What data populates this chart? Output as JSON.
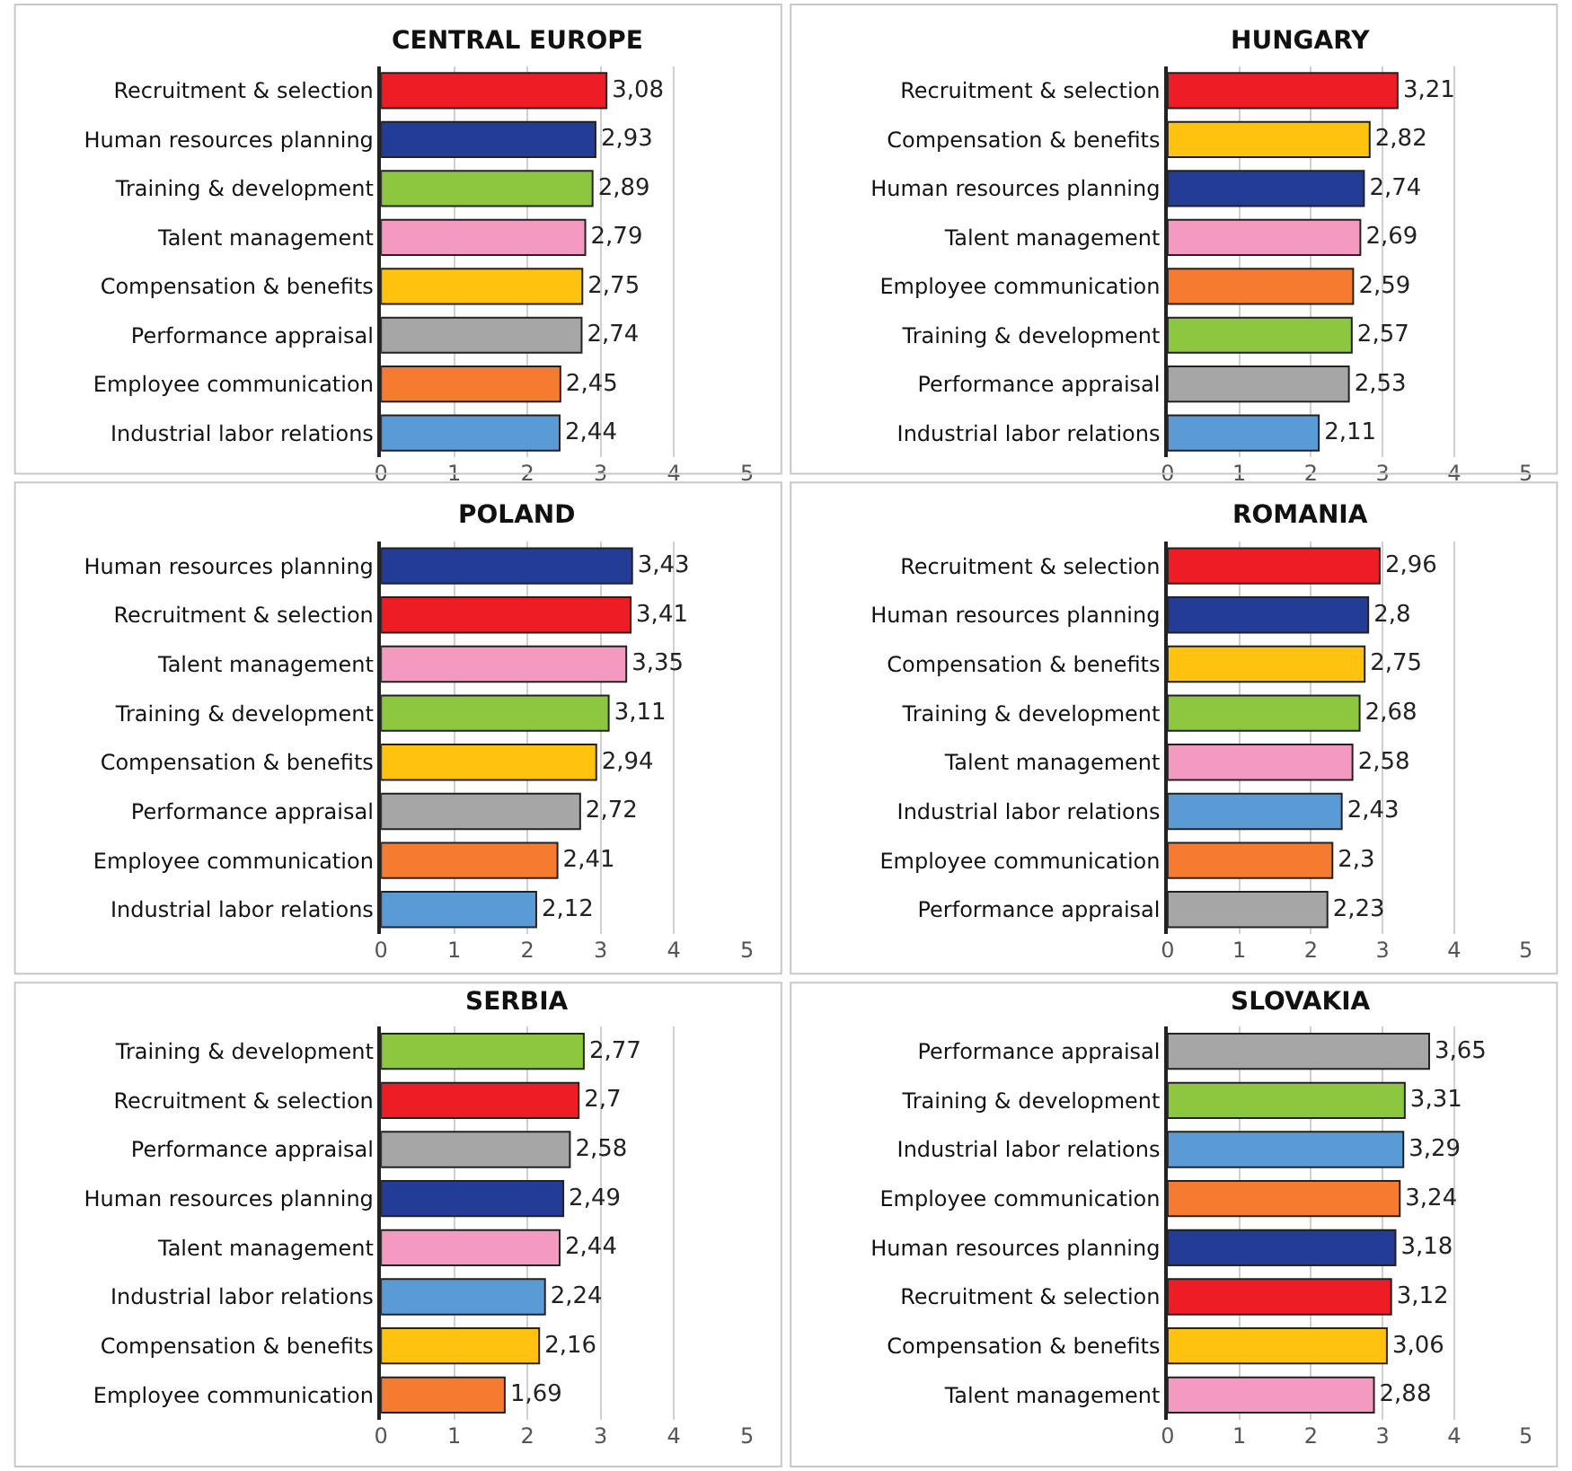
{
  "chart_data": [
    {
      "type": "bar",
      "orientation": "horizontal",
      "title": "CENTRAL EUROPE",
      "categories": [
        "Recruitment & selection",
        "Human resources planning",
        "Training & development",
        "Talent management",
        "Compensation & benefits",
        "Performance appraisal",
        "Employee communication",
        "Industrial labor relations"
      ],
      "values": [
        3.08,
        2.93,
        2.89,
        2.79,
        2.75,
        2.74,
        2.45,
        2.44
      ],
      "value_labels": [
        "3,08",
        "2,93",
        "2,89",
        "2,79",
        "2,75",
        "2,74",
        "2,45",
        "2,44"
      ],
      "colors": [
        "#ee1c25",
        "#233d96",
        "#8dc63f",
        "#f49ac1",
        "#ffc20e",
        "#a6a6a6",
        "#f47b30",
        "#5b9bd5"
      ],
      "xlim": [
        0,
        5
      ],
      "xticks": [
        0,
        1,
        2,
        3,
        4,
        5
      ],
      "grid": "x"
    },
    {
      "type": "bar",
      "orientation": "horizontal",
      "title": "HUNGARY",
      "categories": [
        "Recruitment & selection",
        "Compensation & benefits",
        "Human resources planning",
        "Talent management",
        "Employee communication",
        "Training & development",
        "Performance appraisal",
        "Industrial labor relations"
      ],
      "values": [
        3.21,
        2.82,
        2.74,
        2.69,
        2.59,
        2.57,
        2.53,
        2.11
      ],
      "value_labels": [
        "3,21",
        "2,82",
        "2,74",
        "2,69",
        "2,59",
        "2,57",
        "2,53",
        "2,11"
      ],
      "colors": [
        "#ee1c25",
        "#ffc20e",
        "#233d96",
        "#f49ac1",
        "#f47b30",
        "#8dc63f",
        "#a6a6a6",
        "#5b9bd5"
      ],
      "xlim": [
        0,
        5
      ],
      "xticks": [
        0,
        1,
        2,
        3,
        4,
        5
      ],
      "grid": "x"
    },
    {
      "type": "bar",
      "orientation": "horizontal",
      "title": "POLAND",
      "categories": [
        "Human resources planning",
        "Recruitment & selection",
        "Talent management",
        "Training & development",
        "Compensation & benefits",
        "Performance appraisal",
        "Employee communication",
        "Industrial labor relations"
      ],
      "values": [
        3.43,
        3.41,
        3.35,
        3.11,
        2.94,
        2.72,
        2.41,
        2.12
      ],
      "value_labels": [
        "3,43",
        "3,41",
        "3,35",
        "3,11",
        "2,94",
        "2,72",
        "2,41",
        "2,12"
      ],
      "colors": [
        "#233d96",
        "#ee1c25",
        "#f49ac1",
        "#8dc63f",
        "#ffc20e",
        "#a6a6a6",
        "#f47b30",
        "#5b9bd5"
      ],
      "xlim": [
        0,
        5
      ],
      "xticks": [
        0,
        1,
        2,
        3,
        4,
        5
      ],
      "grid": "x"
    },
    {
      "type": "bar",
      "orientation": "horizontal",
      "title": "ROMANIA",
      "categories": [
        "Recruitment & selection",
        "Human resources planning",
        "Compensation & benefits",
        "Training & development",
        "Talent management",
        "Industrial labor relations",
        "Employee communication",
        "Performance appraisal"
      ],
      "values": [
        2.96,
        2.8,
        2.75,
        2.68,
        2.58,
        2.43,
        2.3,
        2.23
      ],
      "value_labels": [
        "2,96",
        "2,8",
        "2,75",
        "2,68",
        "2,58",
        "2,43",
        "2,3",
        "2,23"
      ],
      "colors": [
        "#ee1c25",
        "#233d96",
        "#ffc20e",
        "#8dc63f",
        "#f49ac1",
        "#5b9bd5",
        "#f47b30",
        "#a6a6a6"
      ],
      "xlim": [
        0,
        5
      ],
      "xticks": [
        0,
        1,
        2,
        3,
        4,
        5
      ],
      "grid": "x"
    },
    {
      "type": "bar",
      "orientation": "horizontal",
      "title": "SERBIA",
      "categories": [
        "Training & development",
        "Recruitment & selection",
        "Performance appraisal",
        "Human resources planning",
        "Talent management",
        "Industrial labor relations",
        "Compensation & benefits",
        "Employee communication"
      ],
      "values": [
        2.77,
        2.7,
        2.58,
        2.49,
        2.44,
        2.24,
        2.16,
        1.69
      ],
      "value_labels": [
        "2,77",
        "2,7",
        "2,58",
        "2,49",
        "2,44",
        "2,24",
        "2,16",
        "1,69"
      ],
      "colors": [
        "#8dc63f",
        "#ee1c25",
        "#a6a6a6",
        "#233d96",
        "#f49ac1",
        "#5b9bd5",
        "#ffc20e",
        "#f47b30"
      ],
      "xlim": [
        0,
        5
      ],
      "xticks": [
        0,
        1,
        2,
        3,
        4,
        5
      ],
      "grid": "x"
    },
    {
      "type": "bar",
      "orientation": "horizontal",
      "title": "SLOVAKIA",
      "categories": [
        "Performance appraisal",
        "Training & development",
        "Industrial labor relations",
        "Employee communication",
        "Human resources planning",
        "Recruitment & selection",
        "Compensation & benefits",
        "Talent management"
      ],
      "values": [
        3.65,
        3.31,
        3.29,
        3.24,
        3.18,
        3.12,
        3.06,
        2.88
      ],
      "value_labels": [
        "3,65",
        "3,31",
        "3,29",
        "3,24",
        "3,18",
        "3,12",
        "3,06",
        "2,88"
      ],
      "colors": [
        "#a6a6a6",
        "#8dc63f",
        "#5b9bd5",
        "#f47b30",
        "#233d96",
        "#ee1c25",
        "#ffc20e",
        "#f49ac1"
      ],
      "xlim": [
        0,
        5
      ],
      "xticks": [
        0,
        1,
        2,
        3,
        4,
        5
      ],
      "grid": "x"
    }
  ]
}
